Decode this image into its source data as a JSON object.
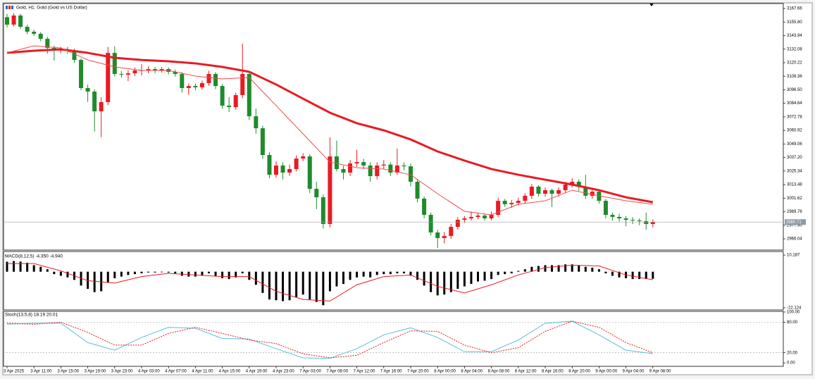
{
  "chart_data": [
    {
      "type": "candlestick",
      "title": "Gold, H1: Gold (Gold vs US Dollar)",
      "up_color": "#e81b23",
      "down_color": "#1f8b2b",
      "open": [
        3160.0,
        3153.5,
        3161.5,
        3151.6,
        3147.3,
        3145.5,
        3141.1,
        3133.1,
        3130.7,
        3131.9,
        3130.7,
        3122.6,
        3098.0,
        3094.9,
        3077.6,
        3085.7,
        3128.8,
        3110.3,
        3109.7,
        3110.9,
        3113.4,
        3113.6,
        3114.6,
        3113.4,
        3114.6,
        3112.2,
        3110.3,
        3098.0,
        3099.8,
        3098.6,
        3102.3,
        3110.3,
        3099.8,
        3082.6,
        3081.3,
        3091.8,
        3110.3,
        3073.3,
        3062.8,
        3039.4,
        3022.1,
        3030.2,
        3024.0,
        3027.1,
        3036.3,
        3038.2,
        3009.8,
        3002.4,
        2979.0,
        3038.2,
        3027.1,
        3024.0,
        3032.0,
        3033.2,
        3030.2,
        3020.9,
        3030.2,
        3031.0,
        3024.0,
        3030.2,
        3029.5,
        3016.0,
        3001.2,
        2987.0,
        2971.6,
        2966.7,
        2968.5,
        2976.5,
        2982.7,
        2983.9,
        2985.2,
        2986.4,
        2983.9,
        2987.0,
        2999.3,
        2996.3,
        2997.5,
        2999.3,
        3003.7,
        3011.7,
        3005.5,
        3008.6,
        3005.5,
        3008.6,
        3013.5,
        3016.0,
        3011.7,
        3003.7,
        3007.3,
        2999.3,
        2987.0,
        2985.2,
        2983.9,
        2982.7,
        2982.2,
        2981.5,
        2979.0
      ],
      "high": [
        3163.0,
        3163.5,
        3163.0,
        3153.5,
        3149.0,
        3147.0,
        3143.0,
        3135.0,
        3134.0,
        3134.0,
        3132.5,
        3124.0,
        3101.0,
        3097.0,
        3090.0,
        3134.0,
        3134.5,
        3113.0,
        3113.5,
        3116.0,
        3119.0,
        3117.0,
        3116.5,
        3116.5,
        3116.0,
        3114.0,
        3112.0,
        3102.0,
        3102.0,
        3104.5,
        3113.0,
        3112.0,
        3101.5,
        3090.0,
        3094.0,
        3136.8,
        3113.0,
        3080.0,
        3065.0,
        3042.0,
        3034.0,
        3033.0,
        3031.0,
        3039.0,
        3041.0,
        3040.0,
        3016.0,
        3005.0,
        3054.8,
        3052.0,
        3030.0,
        3035.0,
        3044.0,
        3036.0,
        3033.0,
        3033.0,
        3035.0,
        3033.0,
        3045.0,
        3033.0,
        3032.0,
        3018.0,
        3003.0,
        2989.0,
        2974.0,
        2972.0,
        2979.0,
        2985.0,
        2986.0,
        2990.0,
        2989.0,
        2988.0,
        2990.0,
        3002.0,
        3001.0,
        3000.0,
        3002.0,
        3006.0,
        3014.0,
        3013.0,
        3011.0,
        3010.0,
        3011.0,
        3016.0,
        3019.0,
        3018.0,
        3022.0,
        3010.0,
        3009.0,
        3001.0,
        2989.0,
        2988.0,
        2986.0,
        2985.0,
        2984.0,
        2989.0,
        2983.0
      ],
      "low": [
        3151.0,
        3152.0,
        3150.0,
        3145.0,
        3143.5,
        3139.0,
        3128.0,
        3122.0,
        3128.5,
        3128.0,
        3120.0,
        3096.0,
        3086.0,
        3060.0,
        3055.0,
        3083.0,
        3108.0,
        3107.0,
        3104.0,
        3108.5,
        3109.0,
        3111.0,
        3111.0,
        3111.5,
        3110.0,
        3108.0,
        3094.0,
        3092.0,
        3096.0,
        3096.5,
        3100.0,
        3097.0,
        3080.0,
        3077.0,
        3079.0,
        3089.0,
        3070.0,
        3058.0,
        3036.0,
        3019.0,
        3019.5,
        3018.0,
        3021.0,
        3025.0,
        3034.0,
        3006.0,
        2992.0,
        2975.0,
        2976.0,
        3025.0,
        3018.0,
        3021.0,
        3029.0,
        3027.0,
        3016.0,
        3018.0,
        3027.0,
        3021.0,
        3022.0,
        3026.0,
        3012.0,
        2998.0,
        2984.0,
        2969.0,
        2958.0,
        2962.0,
        2966.0,
        2974.0,
        2980.0,
        2982.0,
        2983.0,
        2982.0,
        2982.0,
        2985.0,
        2994.0,
        2993.0,
        2995.0,
        2997.0,
        3001.0,
        3003.0,
        3003.0,
        2994.0,
        3003.0,
        3006.0,
        3011.0,
        3008.0,
        3001.0,
        3001.0,
        2997.0,
        2984.0,
        2982.0,
        2981.0,
        2977.0,
        2979.0,
        2978.0,
        2974.0,
        2976.0
      ],
      "close": [
        3153.5,
        3161.5,
        3151.6,
        3147.3,
        3145.5,
        3141.1,
        3133.1,
        3130.7,
        3131.9,
        3130.7,
        3122.6,
        3098.0,
        3094.9,
        3077.6,
        3085.7,
        3128.8,
        3110.3,
        3109.7,
        3110.9,
        3113.4,
        3113.6,
        3114.6,
        3113.4,
        3114.6,
        3112.2,
        3110.3,
        3098.0,
        3099.8,
        3098.6,
        3102.3,
        3110.3,
        3099.8,
        3082.6,
        3081.3,
        3091.8,
        3110.3,
        3073.3,
        3062.8,
        3039.4,
        3022.1,
        3030.2,
        3024.0,
        3027.1,
        3036.3,
        3038.2,
        3009.8,
        3002.4,
        2979.0,
        3038.2,
        3027.1,
        3024.0,
        3032.0,
        3033.2,
        3030.2,
        3020.9,
        3030.2,
        3031.0,
        3024.0,
        3030.2,
        3029.5,
        3016.0,
        3001.2,
        2987.0,
        2971.6,
        2966.7,
        2968.5,
        2976.5,
        2982.7,
        2983.9,
        2985.2,
        2986.4,
        2983.9,
        2987.0,
        2999.3,
        2996.3,
        2997.5,
        2999.3,
        3003.7,
        3011.7,
        3005.5,
        3008.6,
        3005.5,
        3008.6,
        3013.5,
        3016.0,
        3011.7,
        3003.7,
        3007.3,
        2999.3,
        2987.0,
        2985.2,
        2983.9,
        2982.7,
        2982.2,
        2981.5,
        2979.0,
        2980.71
      ],
      "series": [
        {
          "color": "#e81b23",
          "width": 3,
          "x": [
            0,
            4,
            8,
            12,
            16,
            20,
            24,
            28,
            32,
            36,
            40,
            44,
            48,
            52,
            56,
            60,
            64,
            68,
            72,
            76,
            80,
            84,
            88,
            92,
            96
          ],
          "values": [
            3128.8,
            3130.7,
            3131.9,
            3128.8,
            3124.5,
            3122.6,
            3121.4,
            3119.6,
            3116.5,
            3112.2,
            3101.1,
            3088.7,
            3076.4,
            3067.2,
            3061.0,
            3053.0,
            3042.5,
            3034.5,
            3027.1,
            3022.1,
            3017.8,
            3013.5,
            3008.6,
            3002.4,
            2998.1
          ]
        },
        {
          "color": "#f04a4a",
          "width": 1,
          "x": [
            0,
            4,
            8,
            12,
            16,
            20,
            24,
            28,
            32,
            36,
            40,
            44,
            48,
            52,
            56,
            60,
            64,
            68,
            72,
            76,
            80,
            84,
            88,
            92,
            96
          ],
          "values": [
            3128.8,
            3135.0,
            3133.1,
            3122.6,
            3116.5,
            3113.4,
            3113.4,
            3108.5,
            3106.0,
            3107.2,
            3082.6,
            3057.9,
            3033.2,
            3028.3,
            3027.1,
            3022.1,
            3005.5,
            2990.1,
            2987.0,
            2996.3,
            2999.3,
            3008.6,
            3003.7,
            2999.3,
            2996.3
          ]
        }
      ],
      "last_price": 2980.71,
      "ylim": [
        2956.17,
        3171.98
      ],
      "yticks": [
        3167.66,
        {
          "value": 3155.8,
          "label": "3155.80"
        },
        3143.94,
        3132.08,
        3120.22,
        3108.36,
        {
          "value": 3096.5,
          "label": "3096.50"
        },
        3084.64,
        3072.78,
        3060.92,
        3049.06,
        {
          "value": 3037.2,
          "label": "3037.20"
        },
        3025.34,
        3013.48,
        3001.62,
        2989.76,
        {
          "value": 2977.9,
          "label": "2977.90"
        },
        2966.04
      ]
    },
    {
      "type": "bar",
      "title": "MACD(8,12,5) -4.350 -4.940",
      "series": [
        {
          "type": "bar",
          "color": "#000000",
          "values": [
            6.1,
            6.5,
            6.2,
            5.5,
            4.0,
            3.0,
            1.5,
            -1.5,
            -2.5,
            -3.5,
            -5.0,
            -8.5,
            -10.5,
            -12.5,
            -12.0,
            -6.5,
            -4.0,
            -3.0,
            -2.0,
            -1.5,
            -1.0,
            -0.5,
            -0.5,
            -0.3,
            -0.5,
            -1.0,
            -2.5,
            -3.0,
            -3.0,
            -2.5,
            -1.0,
            -2.5,
            -4.0,
            -4.5,
            -3.5,
            -1.0,
            -5.0,
            -8.0,
            -13.0,
            -17.0,
            -17.5,
            -18.0,
            -17.5,
            -15.5,
            -14.0,
            -17.0,
            -18.5,
            -20.5,
            -12.0,
            -9.0,
            -7.5,
            -5.0,
            -3.5,
            -3.0,
            -3.5,
            -2.0,
            -1.5,
            -1.5,
            -1.0,
            -1.0,
            -2.5,
            -5.0,
            -8.5,
            -12.5,
            -14.5,
            -14.0,
            -12.5,
            -10.5,
            -9.0,
            -7.5,
            -6.0,
            -5.5,
            -4.5,
            -2.0,
            -1.5,
            -1.0,
            0.5,
            1.5,
            3.0,
            3.5,
            4.0,
            4.0,
            4.0,
            4.5,
            4.5,
            4.0,
            3.0,
            2.5,
            1.5,
            -1.0,
            -2.5,
            -3.5,
            -4.0,
            -4.5,
            -4.5,
            -4.5,
            -4.35
          ]
        },
        {
          "type": "line",
          "color": "#e81b23",
          "x": [
            0,
            4,
            8,
            12,
            16,
            20,
            24,
            28,
            32,
            36,
            40,
            44,
            48,
            52,
            56,
            60,
            64,
            68,
            72,
            76,
            80,
            84,
            88,
            92,
            96
          ],
          "values": [
            5.0,
            5.0,
            0.5,
            -5.5,
            -7.0,
            -3.0,
            -1.0,
            -2.0,
            -3.0,
            -3.0,
            -12.0,
            -17.0,
            -18.0,
            -8.0,
            -3.0,
            -2.0,
            -9.0,
            -13.0,
            -8.0,
            -2.0,
            2.5,
            4.0,
            3.5,
            -2.0,
            -4.94
          ]
        }
      ],
      "ylim": [
        -23.43,
        12.37
      ],
      "yticks": [
        10.187,
        -22.124
      ]
    },
    {
      "type": "line",
      "title": "Stoch(13,5,8) 18.19 20.01",
      "categories": [
        "3 Apr 2025",
        null,
        null,
        null,
        "3 Apr 11:00",
        null,
        null,
        null,
        "3 Apr 15:00",
        null,
        null,
        null,
        "3 Apr 19:00",
        null,
        null,
        null,
        "3 Apr 23:00",
        null,
        null,
        null,
        "4 Apr 03:00",
        null,
        null,
        null,
        "4 Apr 07:00",
        null,
        null,
        null,
        "4 Apr 11:00",
        null,
        null,
        null,
        "4 Apr 15:00",
        null,
        null,
        null,
        "4 Apr 19:00",
        null,
        null,
        null,
        "4 Apr 23:00",
        null,
        null,
        null,
        "7 Apr 03:00",
        null,
        null,
        null,
        "7 Apr 08:00",
        null,
        null,
        null,
        "7 Apr 12:00",
        null,
        null,
        null,
        "7 Apr 16:00",
        null,
        null,
        null,
        "7 Apr 20:00",
        null,
        null,
        null,
        "8 Apr 00:00",
        null,
        null,
        null,
        "8 Apr 04:00",
        null,
        null,
        null,
        "8 Apr 08:00",
        null,
        null,
        null,
        "8 Apr 12:00",
        null,
        null,
        null,
        "8 Apr 16:00",
        null,
        null,
        null,
        "8 Apr 20:00",
        null,
        null,
        null,
        "9 Apr 00:00",
        null,
        null,
        null,
        "9 Apr 04:00",
        null,
        null,
        null,
        "9 Apr 08:00"
      ],
      "series": [
        {
          "color": "#5bbfd6",
          "dashed": false,
          "x": [
            0,
            4,
            8,
            12,
            16,
            20,
            24,
            28,
            32,
            36,
            40,
            44,
            48,
            52,
            56,
            60,
            64,
            68,
            72,
            76,
            80,
            84,
            88,
            92,
            96
          ],
          "values": [
            76,
            78,
            78,
            40,
            25,
            50,
            70,
            68,
            48,
            47,
            28,
            10,
            9,
            28,
            55,
            69,
            50,
            22,
            22,
            45,
            78,
            82,
            55,
            25,
            18.19
          ]
        },
        {
          "color": "#e81b23",
          "dashed": true,
          "x": [
            0,
            4,
            8,
            12,
            16,
            20,
            24,
            28,
            32,
            36,
            40,
            44,
            48,
            52,
            56,
            60,
            64,
            68,
            72,
            76,
            80,
            84,
            88,
            92,
            96
          ],
          "values": [
            78,
            76,
            80,
            60,
            35,
            35,
            58,
            70,
            58,
            45,
            38,
            18,
            10,
            15,
            40,
            63,
            62,
            35,
            20,
            30,
            62,
            82,
            70,
            40,
            20.01
          ]
        }
      ],
      "levels": [
        80,
        20
      ],
      "ylim": [
        -6.7,
        101.3
      ],
      "yticks": [
        {
          "value": 100,
          "label": "100.00"
        },
        {
          "value": 80,
          "label": "80.00"
        },
        {
          "value": 20,
          "label": "20.00"
        },
        {
          "value": 0,
          "label": "0.00"
        }
      ]
    }
  ]
}
